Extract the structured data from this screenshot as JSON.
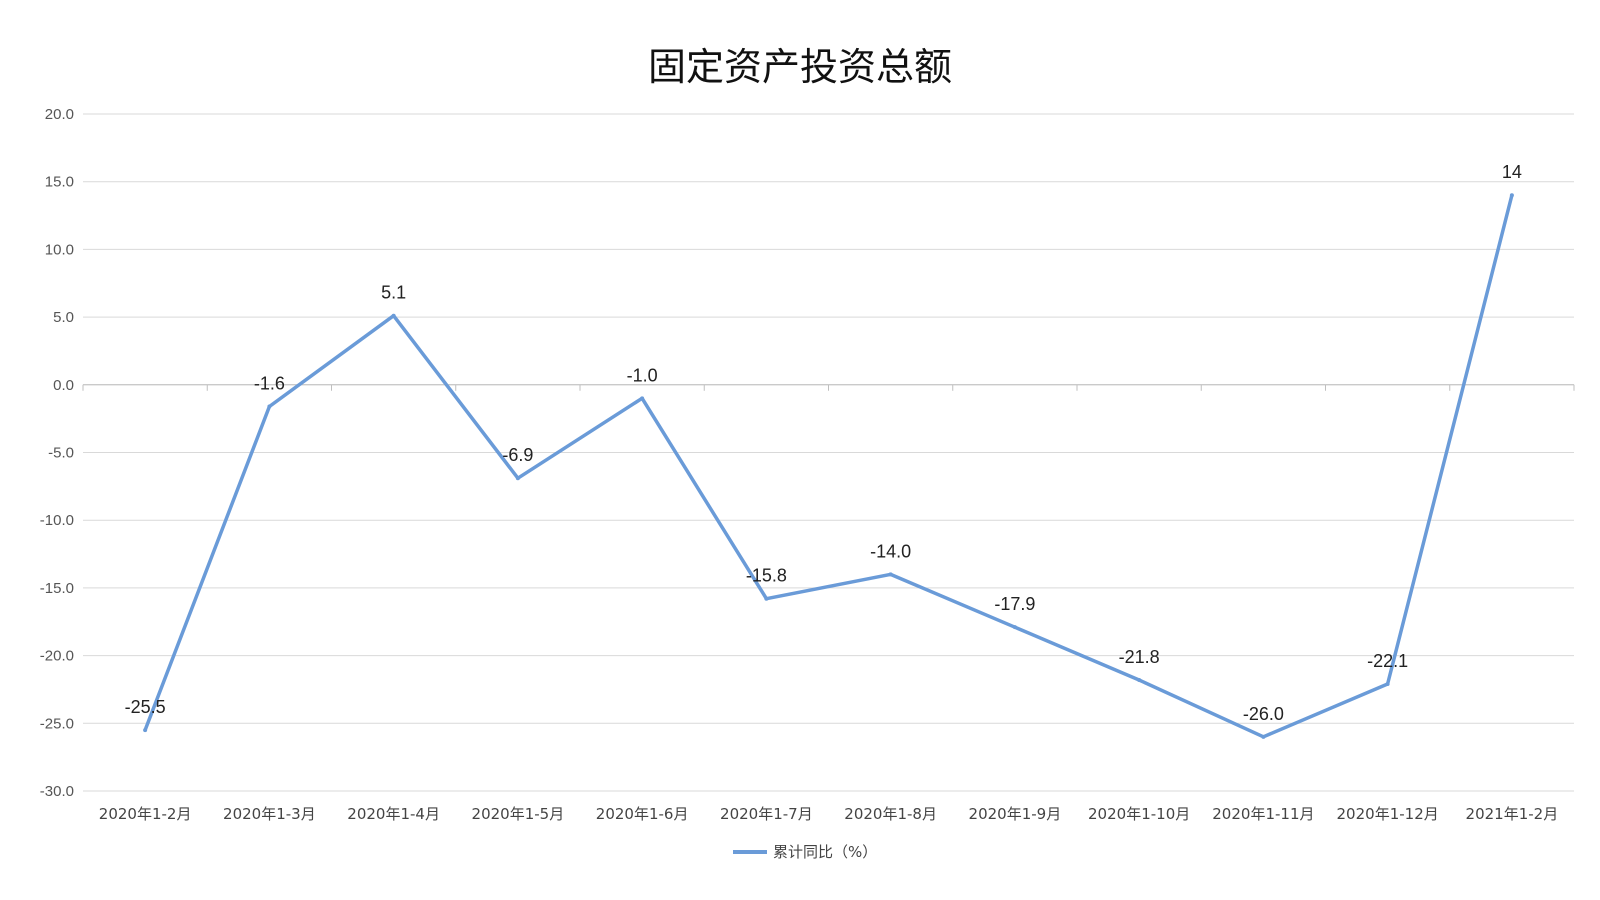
{
  "chart_data": {
    "type": "line",
    "title": "固定资产投资总额",
    "categories": [
      "2020年1-2月",
      "2020年1-3月",
      "2020年1-4月",
      "2020年1-5月",
      "2020年1-6月",
      "2020年1-7月",
      "2020年1-8月",
      "2020年1-9月",
      "2020年1-10月",
      "2020年1-11月",
      "2020年1-12月",
      "2021年1-2月"
    ],
    "series": [
      {
        "name": "累计同比（%）",
        "values": [
          -25.5,
          -1.6,
          5.1,
          -6.9,
          -1.0,
          -15.8,
          -14.0,
          -17.9,
          -21.8,
          -26.0,
          -22.1,
          14
        ],
        "labels": [
          "-25.5",
          "-1.6",
          "5.1",
          "-6.9",
          "-1.0",
          "-15.8",
          "-14.0",
          "-17.9",
          "-21.8",
          "-26.0",
          "-22.1",
          "14"
        ],
        "color": "#6a9bd8"
      }
    ],
    "ylim": [
      -30,
      20
    ],
    "yticks": [
      "20.0",
      "15.0",
      "10.0",
      "5.0",
      "0.0",
      "-5.0",
      "-10.0",
      "-15.0",
      "-20.0",
      "-25.0",
      "-30.0"
    ],
    "ytick_values": [
      20,
      15,
      10,
      5,
      0,
      -5,
      -10,
      -15,
      -20,
      -25,
      -30
    ],
    "grid": true,
    "legend": "bottom-center",
    "xlabel": "",
    "ylabel": ""
  }
}
